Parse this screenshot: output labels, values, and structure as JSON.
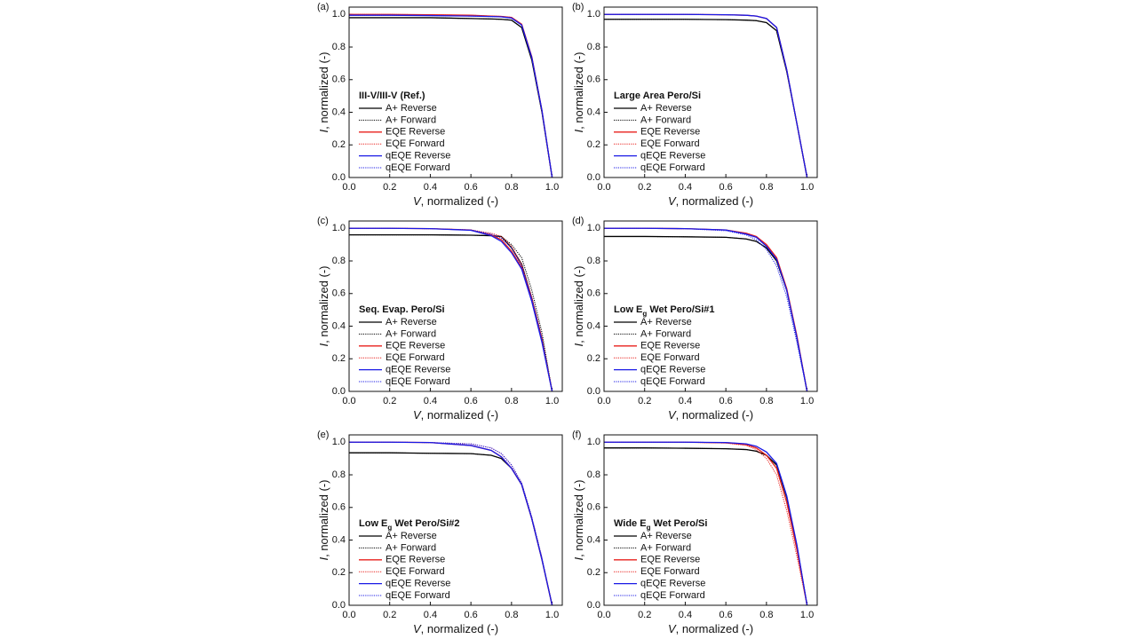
{
  "chart_data": [
    {
      "type": "line",
      "panel": "(a)",
      "annotation": [
        {
          "text": "III-V/III-V (Ref.)"
        }
      ],
      "xlabel": [
        {
          "text": "V",
          "italic": true
        },
        {
          "text": ", normalized (-)"
        }
      ],
      "ylabel": [
        {
          "text": "I",
          "italic": true
        },
        {
          "text": ", normalized (-)"
        }
      ],
      "xlim": [
        0,
        1.05
      ],
      "ylim": [
        0,
        1.045
      ],
      "xticks": [
        {
          "value": 0,
          "label": "0.0"
        },
        0.2,
        0.4,
        0.6,
        0.8,
        {
          "value": 1,
          "label": "1.0"
        }
      ],
      "yticks": [
        {
          "value": 0,
          "label": "0.0"
        },
        0.2,
        0.4,
        0.6,
        0.8,
        {
          "value": 1,
          "label": "1.0"
        }
      ],
      "x": [
        0,
        0.2,
        0.4,
        0.6,
        0.7,
        0.75,
        0.8,
        0.85,
        0.9,
        0.95,
        1
      ],
      "series": [
        {
          "name": "A+ Reverse",
          "color": "#000000",
          "dash": "solid",
          "values": [
            0.98,
            0.98,
            0.98,
            0.975,
            0.972,
            0.97,
            0.965,
            0.92,
            0.72,
            0.4,
            0
          ]
        },
        {
          "name": "A+ Forward",
          "color": "#000000",
          "dash": "dotted",
          "values": [
            0.98,
            0.98,
            0.98,
            0.975,
            0.972,
            0.97,
            0.965,
            0.92,
            0.72,
            0.4,
            0
          ]
        },
        {
          "name": "EQE Reverse",
          "color": "#e8201c",
          "dash": "solid",
          "values": [
            1,
            1,
            0.998,
            0.995,
            0.99,
            0.988,
            0.982,
            0.94,
            0.74,
            0.41,
            0
          ]
        },
        {
          "name": "EQE Forward",
          "color": "#e8201c",
          "dash": "dotted",
          "values": [
            1,
            1,
            0.998,
            0.995,
            0.99,
            0.988,
            0.982,
            0.94,
            0.74,
            0.41,
            0
          ]
        },
        {
          "name": "qEQE Reverse",
          "color": "#1a1ae6",
          "dash": "solid",
          "values": [
            0.995,
            0.995,
            0.993,
            0.99,
            0.987,
            0.985,
            0.978,
            0.935,
            0.735,
            0.41,
            0
          ]
        },
        {
          "name": "qEQE Forward",
          "color": "#1a1ae6",
          "dash": "dotted",
          "values": [
            0.995,
            0.995,
            0.993,
            0.99,
            0.987,
            0.985,
            0.978,
            0.935,
            0.735,
            0.41,
            0
          ]
        }
      ]
    },
    {
      "type": "line",
      "panel": "(b)",
      "annotation": [
        {
          "text": "Large Area Pero/Si"
        }
      ],
      "xlabel": [
        {
          "text": "V",
          "italic": true
        },
        {
          "text": ", normalized (-)"
        }
      ],
      "ylabel": [
        {
          "text": "I",
          "italic": true
        },
        {
          "text": ", normalized (-)"
        }
      ],
      "xlim": [
        0,
        1.05
      ],
      "ylim": [
        0,
        1.045
      ],
      "xticks": [
        {
          "value": 0,
          "label": "0.0"
        },
        0.2,
        0.4,
        0.6,
        0.8,
        {
          "value": 1,
          "label": "1.0"
        }
      ],
      "yticks": [
        {
          "value": 0,
          "label": "0.0"
        },
        0.2,
        0.4,
        0.6,
        0.8,
        {
          "value": 1,
          "label": "1.0"
        }
      ],
      "x": [
        0,
        0.2,
        0.4,
        0.6,
        0.7,
        0.75,
        0.8,
        0.85,
        0.9,
        0.95,
        1
      ],
      "series": [
        {
          "name": "A+ Reverse",
          "color": "#000000",
          "dash": "solid",
          "values": [
            0.97,
            0.97,
            0.97,
            0.968,
            0.965,
            0.962,
            0.95,
            0.9,
            0.65,
            0.33,
            0
          ]
        },
        {
          "name": "A+ Forward",
          "color": "#000000",
          "dash": "dotted",
          "values": [
            0.97,
            0.97,
            0.97,
            0.968,
            0.965,
            0.962,
            0.95,
            0.9,
            0.65,
            0.33,
            0
          ]
        },
        {
          "name": "EQE Reverse",
          "color": "#e8201c",
          "dash": "solid",
          "values": [
            1,
            1,
            1,
            0.998,
            0.995,
            0.99,
            0.975,
            0.92,
            0.66,
            0.33,
            0
          ]
        },
        {
          "name": "EQE Forward",
          "color": "#e8201c",
          "dash": "dotted",
          "values": [
            1,
            1,
            1,
            0.998,
            0.995,
            0.99,
            0.975,
            0.92,
            0.66,
            0.33,
            0
          ]
        },
        {
          "name": "qEQE Reverse",
          "color": "#1a1ae6",
          "dash": "solid",
          "values": [
            1,
            1,
            1,
            0.998,
            0.995,
            0.99,
            0.975,
            0.92,
            0.66,
            0.33,
            0
          ]
        },
        {
          "name": "qEQE Forward",
          "color": "#1a1ae6",
          "dash": "dotted",
          "values": [
            1,
            1,
            1,
            0.998,
            0.995,
            0.99,
            0.975,
            0.92,
            0.66,
            0.33,
            0
          ]
        }
      ]
    },
    {
      "type": "line",
      "panel": "(c)",
      "annotation": [
        {
          "text": "Seq. Evap. Pero/Si"
        }
      ],
      "xlabel": [
        {
          "text": "V",
          "italic": true
        },
        {
          "text": ", normalized (-)"
        }
      ],
      "ylabel": [
        {
          "text": "I",
          "italic": true
        },
        {
          "text": ", normalized (-)"
        }
      ],
      "xlim": [
        0,
        1.05
      ],
      "ylim": [
        0,
        1.045
      ],
      "xticks": [
        {
          "value": 0,
          "label": "0.0"
        },
        0.2,
        0.4,
        0.6,
        0.8,
        {
          "value": 1,
          "label": "1.0"
        }
      ],
      "yticks": [
        {
          "value": 0,
          "label": "0.0"
        },
        0.2,
        0.4,
        0.6,
        0.8,
        {
          "value": 1,
          "label": "1.0"
        }
      ],
      "x": [
        0,
        0.2,
        0.4,
        0.6,
        0.7,
        0.75,
        0.8,
        0.85,
        0.9,
        0.95,
        1
      ],
      "series": [
        {
          "name": "A+ Reverse",
          "color": "#000000",
          "dash": "solid",
          "values": [
            0.96,
            0.96,
            0.96,
            0.958,
            0.955,
            0.95,
            0.88,
            0.78,
            0.57,
            0.32,
            0
          ]
        },
        {
          "name": "A+ Forward",
          "color": "#000000",
          "dash": "dotted",
          "values": [
            0.96,
            0.96,
            0.96,
            0.958,
            0.955,
            0.95,
            0.9,
            0.82,
            0.62,
            0.36,
            0
          ]
        },
        {
          "name": "EQE Reverse",
          "color": "#e8201c",
          "dash": "solid",
          "values": [
            1,
            1,
            0.998,
            0.99,
            0.96,
            0.93,
            0.86,
            0.76,
            0.56,
            0.31,
            0
          ]
        },
        {
          "name": "EQE Forward",
          "color": "#e8201c",
          "dash": "dotted",
          "values": [
            1,
            1,
            0.998,
            0.99,
            0.97,
            0.95,
            0.89,
            0.78,
            0.58,
            0.33,
            0
          ]
        },
        {
          "name": "qEQE Reverse",
          "color": "#1a1ae6",
          "dash": "solid",
          "values": [
            1,
            1,
            0.998,
            0.988,
            0.955,
            0.92,
            0.85,
            0.75,
            0.55,
            0.3,
            0
          ]
        },
        {
          "name": "qEQE Forward",
          "color": "#1a1ae6",
          "dash": "dotted",
          "values": [
            1,
            1,
            0.998,
            0.99,
            0.965,
            0.94,
            0.88,
            0.77,
            0.57,
            0.32,
            0
          ]
        }
      ]
    },
    {
      "type": "line",
      "panel": "(d)",
      "annotation": [
        {
          "text": "Low E"
        },
        {
          "text": "g",
          "sub": true
        },
        {
          "text": " Wet Pero/Si#1"
        }
      ],
      "xlabel": [
        {
          "text": "V",
          "italic": true
        },
        {
          "text": ", normalized (-)"
        }
      ],
      "ylabel": [
        {
          "text": "I",
          "italic": true
        },
        {
          "text": ", normalized (-)"
        }
      ],
      "xlim": [
        0,
        1.05
      ],
      "ylim": [
        0,
        1.045
      ],
      "xticks": [
        {
          "value": 0,
          "label": "0.0"
        },
        0.2,
        0.4,
        0.6,
        0.8,
        {
          "value": 1,
          "label": "1.0"
        }
      ],
      "yticks": [
        {
          "value": 0,
          "label": "0.0"
        },
        0.2,
        0.4,
        0.6,
        0.8,
        {
          "value": 1,
          "label": "1.0"
        }
      ],
      "x": [
        0,
        0.2,
        0.4,
        0.6,
        0.7,
        0.75,
        0.8,
        0.85,
        0.9,
        0.95,
        1
      ],
      "series": [
        {
          "name": "A+ Reverse",
          "color": "#000000",
          "dash": "solid",
          "values": [
            0.95,
            0.95,
            0.948,
            0.945,
            0.935,
            0.92,
            0.88,
            0.8,
            0.62,
            0.33,
            0
          ]
        },
        {
          "name": "A+ Forward",
          "color": "#000000",
          "dash": "dotted",
          "values": [
            0.95,
            0.95,
            0.948,
            0.945,
            0.935,
            0.92,
            0.88,
            0.8,
            0.62,
            0.33,
            0
          ]
        },
        {
          "name": "EQE Reverse",
          "color": "#e8201c",
          "dash": "solid",
          "values": [
            1,
            1,
            0.998,
            0.99,
            0.97,
            0.95,
            0.9,
            0.82,
            0.63,
            0.34,
            0
          ]
        },
        {
          "name": "EQE Forward",
          "color": "#e8201c",
          "dash": "dotted",
          "values": [
            1,
            1,
            0.998,
            0.99,
            0.97,
            0.95,
            0.9,
            0.82,
            0.63,
            0.34,
            0
          ]
        },
        {
          "name": "qEQE Reverse",
          "color": "#1a1ae6",
          "dash": "solid",
          "values": [
            1,
            1,
            0.998,
            0.99,
            0.965,
            0.945,
            0.89,
            0.81,
            0.62,
            0.33,
            0
          ]
        },
        {
          "name": "qEQE Forward",
          "color": "#1a1ae6",
          "dash": "dotted",
          "values": [
            1,
            1,
            0.998,
            0.985,
            0.96,
            0.93,
            0.87,
            0.77,
            0.58,
            0.3,
            0
          ]
        }
      ]
    },
    {
      "type": "line",
      "panel": "(e)",
      "annotation": [
        {
          "text": "Low E"
        },
        {
          "text": "g",
          "sub": true
        },
        {
          "text": " Wet Pero/Si#2"
        }
      ],
      "xlabel": [
        {
          "text": "V",
          "italic": true
        },
        {
          "text": ", normalized (-)"
        }
      ],
      "ylabel": [
        {
          "text": "I",
          "italic": true
        },
        {
          "text": ", normalized (-)"
        }
      ],
      "xlim": [
        0,
        1.05
      ],
      "ylim": [
        0,
        1.045
      ],
      "xticks": [
        {
          "value": 0,
          "label": "0.0"
        },
        0.2,
        0.4,
        0.6,
        0.8,
        {
          "value": 1,
          "label": "1.0"
        }
      ],
      "yticks": [
        {
          "value": 0,
          "label": "0.0"
        },
        0.2,
        0.4,
        0.6,
        0.8,
        {
          "value": 1,
          "label": "1.0"
        }
      ],
      "x": [
        0,
        0.2,
        0.4,
        0.6,
        0.7,
        0.75,
        0.8,
        0.85,
        0.9,
        0.95,
        1
      ],
      "series": [
        {
          "name": "A+ Reverse",
          "color": "#000000",
          "dash": "solid",
          "values": [
            0.935,
            0.935,
            0.932,
            0.93,
            0.92,
            0.9,
            0.84,
            0.74,
            0.53,
            0.28,
            0
          ]
        },
        {
          "name": "A+ Forward",
          "color": "#000000",
          "dash": "dotted",
          "values": [
            0.935,
            0.935,
            0.932,
            0.93,
            0.92,
            0.9,
            0.84,
            0.74,
            0.53,
            0.28,
            0
          ]
        },
        {
          "name": "EQE Reverse",
          "color": "#e8201c",
          "dash": "solid",
          "values": [
            1,
            1,
            0.998,
            0.98,
            0.95,
            0.91,
            0.84,
            0.74,
            0.53,
            0.28,
            0
          ]
        },
        {
          "name": "EQE Forward",
          "color": "#e8201c",
          "dash": "dotted",
          "values": [
            1,
            1,
            0.998,
            0.99,
            0.965,
            0.93,
            0.86,
            0.75,
            0.54,
            0.29,
            0
          ]
        },
        {
          "name": "qEQE Reverse",
          "color": "#1a1ae6",
          "dash": "solid",
          "values": [
            1,
            1,
            0.998,
            0.98,
            0.95,
            0.91,
            0.84,
            0.74,
            0.53,
            0.28,
            0
          ]
        },
        {
          "name": "qEQE Forward",
          "color": "#1a1ae6",
          "dash": "dotted",
          "values": [
            1,
            1,
            0.998,
            0.99,
            0.965,
            0.93,
            0.86,
            0.75,
            0.54,
            0.29,
            0
          ]
        }
      ]
    },
    {
      "type": "line",
      "panel": "(f)",
      "annotation": [
        {
          "text": "Wide E"
        },
        {
          "text": "g",
          "sub": true
        },
        {
          "text": " Wet Pero/Si"
        }
      ],
      "xlabel": [
        {
          "text": "V",
          "italic": true
        },
        {
          "text": ", normalized (-)"
        }
      ],
      "ylabel": [
        {
          "text": "I",
          "italic": true
        },
        {
          "text": ", normalized (-)"
        }
      ],
      "xlim": [
        0,
        1.05
      ],
      "ylim": [
        0,
        1.045
      ],
      "xticks": [
        {
          "value": 0,
          "label": "0.0"
        },
        0.2,
        0.4,
        0.6,
        0.8,
        {
          "value": 1,
          "label": "1.0"
        }
      ],
      "yticks": [
        {
          "value": 0,
          "label": "0.0"
        },
        0.2,
        0.4,
        0.6,
        0.8,
        {
          "value": 1,
          "label": "1.0"
        }
      ],
      "x": [
        0,
        0.2,
        0.4,
        0.6,
        0.7,
        0.75,
        0.8,
        0.85,
        0.9,
        0.95,
        1
      ],
      "series": [
        {
          "name": "A+ Reverse",
          "color": "#000000",
          "dash": "solid",
          "values": [
            0.965,
            0.965,
            0.963,
            0.96,
            0.955,
            0.945,
            0.92,
            0.86,
            0.66,
            0.36,
            0
          ]
        },
        {
          "name": "A+ Forward",
          "color": "#000000",
          "dash": "dotted",
          "values": [
            0.965,
            0.965,
            0.963,
            0.96,
            0.955,
            0.945,
            0.92,
            0.86,
            0.66,
            0.36,
            0
          ]
        },
        {
          "name": "EQE Reverse",
          "color": "#e8201c",
          "dash": "solid",
          "values": [
            1,
            1,
            1,
            0.996,
            0.985,
            0.965,
            0.92,
            0.84,
            0.63,
            0.34,
            0
          ]
        },
        {
          "name": "EQE Forward",
          "color": "#e8201c",
          "dash": "dotted",
          "values": [
            1,
            1,
            1,
            0.995,
            0.98,
            0.955,
            0.9,
            0.8,
            0.58,
            0.3,
            0
          ]
        },
        {
          "name": "qEQE Reverse",
          "color": "#1a1ae6",
          "dash": "solid",
          "values": [
            1,
            1,
            1,
            0.998,
            0.99,
            0.975,
            0.94,
            0.87,
            0.67,
            0.37,
            0
          ]
        },
        {
          "name": "qEQE Forward",
          "color": "#1a1ae6",
          "dash": "dotted",
          "values": [
            1,
            1,
            1,
            0.998,
            0.99,
            0.975,
            0.94,
            0.87,
            0.67,
            0.37,
            0
          ]
        }
      ]
    }
  ]
}
